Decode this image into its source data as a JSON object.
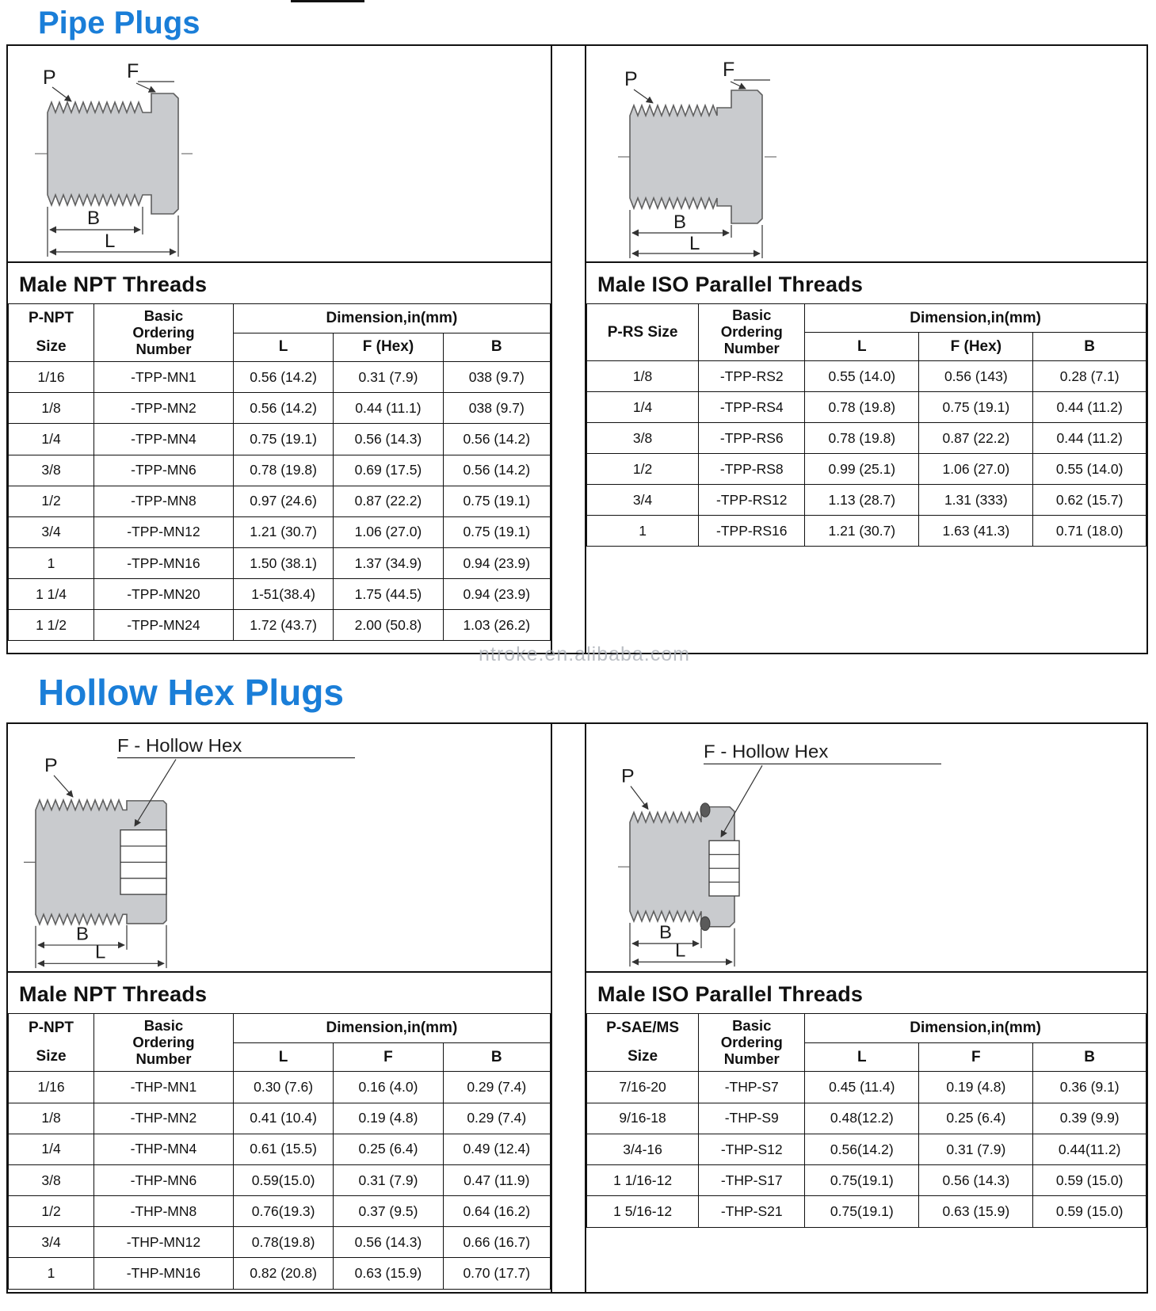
{
  "page": {
    "watermark": "ntroke.en.alibaba.com"
  },
  "sections": {
    "pipe": {
      "title": "Pipe Plugs"
    },
    "hex": {
      "title": "Hollow Hex Plugs"
    }
  },
  "diagram_labels": {
    "p": "P",
    "f": "F",
    "b": "B",
    "l": "L",
    "f_hollow": "F - Hollow Hex"
  },
  "tables": {
    "pipe_npt": {
      "heading": "Male NPT Threads",
      "size_header": "P-NPT\nSize",
      "number_header": "Basic\nOrdering\nNumber",
      "dim_header": "Dimension,in(mm)",
      "cols": [
        "L",
        "F (Hex)",
        "B"
      ],
      "rows": [
        [
          "1/16",
          "-TPP-MN1",
          "0.56 (14.2)",
          "0.31 (7.9)",
          "038 (9.7)"
        ],
        [
          "1/8",
          "-TPP-MN2",
          "0.56 (14.2)",
          "0.44 (11.1)",
          "038 (9.7)"
        ],
        [
          "1/4",
          "-TPP-MN4",
          "0.75 (19.1)",
          "0.56 (14.3)",
          "0.56 (14.2)"
        ],
        [
          "3/8",
          "-TPP-MN6",
          "0.78 (19.8)",
          "0.69 (17.5)",
          "0.56 (14.2)"
        ],
        [
          "1/2",
          "-TPP-MN8",
          "0.97 (24.6)",
          "0.87 (22.2)",
          "0.75 (19.1)"
        ],
        [
          "3/4",
          "-TPP-MN12",
          "1.21 (30.7)",
          "1.06 (27.0)",
          "0.75 (19.1)"
        ],
        [
          "1",
          "-TPP-MN16",
          "1.50 (38.1)",
          "1.37 (34.9)",
          "0.94 (23.9)"
        ],
        [
          "1 1/4",
          "-TPP-MN20",
          "1-51(38.4)",
          "1.75 (44.5)",
          "0.94 (23.9)"
        ],
        [
          "1 1/2",
          "-TPP-MN24",
          "1.72 (43.7)",
          "2.00 (50.8)",
          "1.03 (26.2)"
        ]
      ]
    },
    "pipe_iso": {
      "heading": "Male ISO Parallel Threads",
      "size_header": "P-RS Size",
      "number_header": "Basic\nOrdering\nNumber",
      "dim_header": "Dimension,in(mm)",
      "cols": [
        "L",
        "F (Hex)",
        "B"
      ],
      "rows": [
        [
          "1/8",
          "-TPP-RS2",
          "0.55 (14.0)",
          "0.56 (143)",
          "0.28 (7.1)"
        ],
        [
          "1/4",
          "-TPP-RS4",
          "0.78 (19.8)",
          "0.75 (19.1)",
          "0.44 (11.2)"
        ],
        [
          "3/8",
          "-TPP-RS6",
          "0.78 (19.8)",
          "0.87 (22.2)",
          "0.44 (11.2)"
        ],
        [
          "1/2",
          "-TPP-RS8",
          "0.99 (25.1)",
          "1.06 (27.0)",
          "0.55 (14.0)"
        ],
        [
          "3/4",
          "-TPP-RS12",
          "1.13 (28.7)",
          "1.31 (333)",
          "0.62 (15.7)"
        ],
        [
          "1",
          "-TPP-RS16",
          "1.21 (30.7)",
          "1.63 (41.3)",
          "0.71 (18.0)"
        ]
      ]
    },
    "hex_npt": {
      "heading": "Male NPT Threads",
      "size_header": "P-NPT\nSize",
      "number_header": "Basic\nOrdering\nNumber",
      "dim_header": "Dimension,in(mm)",
      "cols": [
        "L",
        "F",
        "B"
      ],
      "rows": [
        [
          "1/16",
          "-THP-MN1",
          "0.30 (7.6)",
          "0.16 (4.0)",
          "0.29 (7.4)"
        ],
        [
          "1/8",
          "-THP-MN2",
          "0.41 (10.4)",
          "0.19 (4.8)",
          "0.29 (7.4)"
        ],
        [
          "1/4",
          "-THP-MN4",
          "0.61 (15.5)",
          "0.25 (6.4)",
          "0.49 (12.4)"
        ],
        [
          "3/8",
          "-THP-MN6",
          "0.59(15.0)",
          "0.31 (7.9)",
          "0.47 (11.9)"
        ],
        [
          "1/2",
          "-THP-MN8",
          "0.76(19.3)",
          "0.37 (9.5)",
          "0.64 (16.2)"
        ],
        [
          "3/4",
          "-THP-MN12",
          "0.78(19.8)",
          "0.56 (14.3)",
          "0.66 (16.7)"
        ],
        [
          "1",
          "-THP-MN16",
          "0.82 (20.8)",
          "0.63 (15.9)",
          "0.70 (17.7)"
        ]
      ]
    },
    "hex_iso": {
      "heading": "Male ISO Parallel Threads",
      "size_header": "P-SAE/MS\nSize",
      "number_header": "Basic\nOrdering\nNumber",
      "dim_header": "Dimension,in(mm)",
      "cols": [
        "L",
        "F",
        "B"
      ],
      "rows": [
        [
          "7/16-20",
          "-THP-S7",
          "0.45 (11.4)",
          "0.19 (4.8)",
          "0.36 (9.1)"
        ],
        [
          "9/16-18",
          "-THP-S9",
          "0.48(12.2)",
          "0.25 (6.4)",
          "0.39 (9.9)"
        ],
        [
          "3/4-16",
          "-THP-S12",
          "0.56(14.2)",
          "0.31 (7.9)",
          "0.44(11.2)"
        ],
        [
          "1 1/16-12",
          "-THP-S17",
          "0.75(19.1)",
          "0.56 (14.3)",
          "0.59 (15.0)"
        ],
        [
          "1 5/16-12",
          "-THP-S21",
          "0.75(19.1)",
          "0.63 (15.9)",
          "0.59 (15.0)"
        ]
      ]
    }
  }
}
